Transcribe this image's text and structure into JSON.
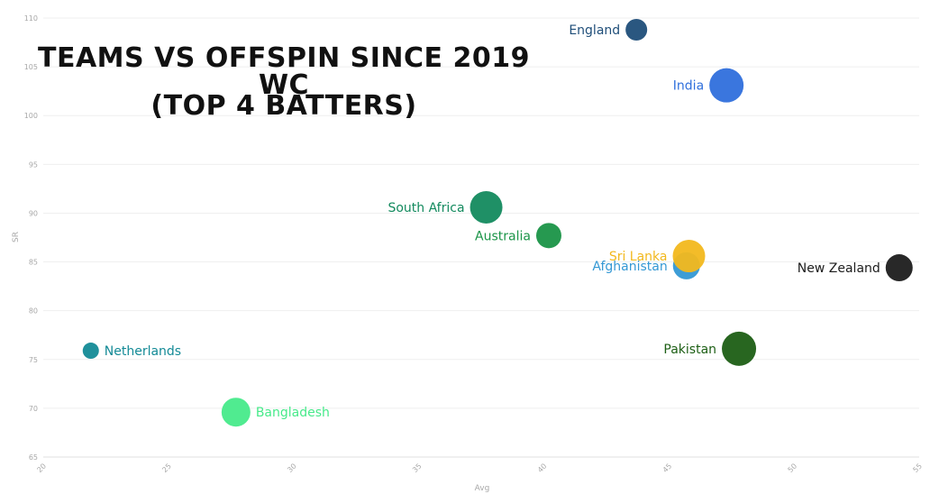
{
  "chart_data": {
    "type": "scatter",
    "title_lines": [
      "Teams vs Offspin Since 2019 WC",
      "(Top 4 Batters)"
    ],
    "xlabel": "Avg",
    "ylabel": "SR",
    "xlim": [
      20,
      55
    ],
    "ylim": [
      65,
      110
    ],
    "xticks": [
      20,
      25,
      30,
      35,
      40,
      45,
      50,
      55
    ],
    "yticks": [
      65,
      70,
      75,
      80,
      85,
      90,
      95,
      100,
      105,
      110
    ],
    "grid": "horizontal",
    "points": [
      {
        "name": "England",
        "x": 43.7,
        "y": 108.8,
        "size": 12,
        "color": "#1f4e79",
        "label_side": "left"
      },
      {
        "name": "India",
        "x": 47.3,
        "y": 103.1,
        "size": 19,
        "color": "#2f6fdc",
        "label_side": "left"
      },
      {
        "name": "South Africa",
        "x": 37.7,
        "y": 90.6,
        "size": 18,
        "color": "#138a5e",
        "label_side": "left"
      },
      {
        "name": "Australia",
        "x": 40.2,
        "y": 87.7,
        "size": 14,
        "color": "#1a9447",
        "label_side": "left"
      },
      {
        "name": "Afghanistan",
        "x": 45.7,
        "y": 84.6,
        "size": 15,
        "color": "#3498d4",
        "label_side": "left"
      },
      {
        "name": "Sri Lanka",
        "x": 45.8,
        "y": 85.6,
        "size": 18,
        "color": "#f2b81e",
        "label_side": "left"
      },
      {
        "name": "New Zealand",
        "x": 54.2,
        "y": 84.4,
        "size": 15,
        "color": "#1c1c1c",
        "label_side": "left"
      },
      {
        "name": "Netherlands",
        "x": 21.9,
        "y": 75.9,
        "size": 9,
        "color": "#138a96",
        "label_side": "right"
      },
      {
        "name": "Pakistan",
        "x": 47.8,
        "y": 76.1,
        "size": 19,
        "color": "#1c5e14",
        "label_side": "left"
      },
      {
        "name": "Bangladesh",
        "x": 27.7,
        "y": 69.6,
        "size": 16,
        "color": "#47ea8a",
        "label_side": "right"
      }
    ]
  }
}
